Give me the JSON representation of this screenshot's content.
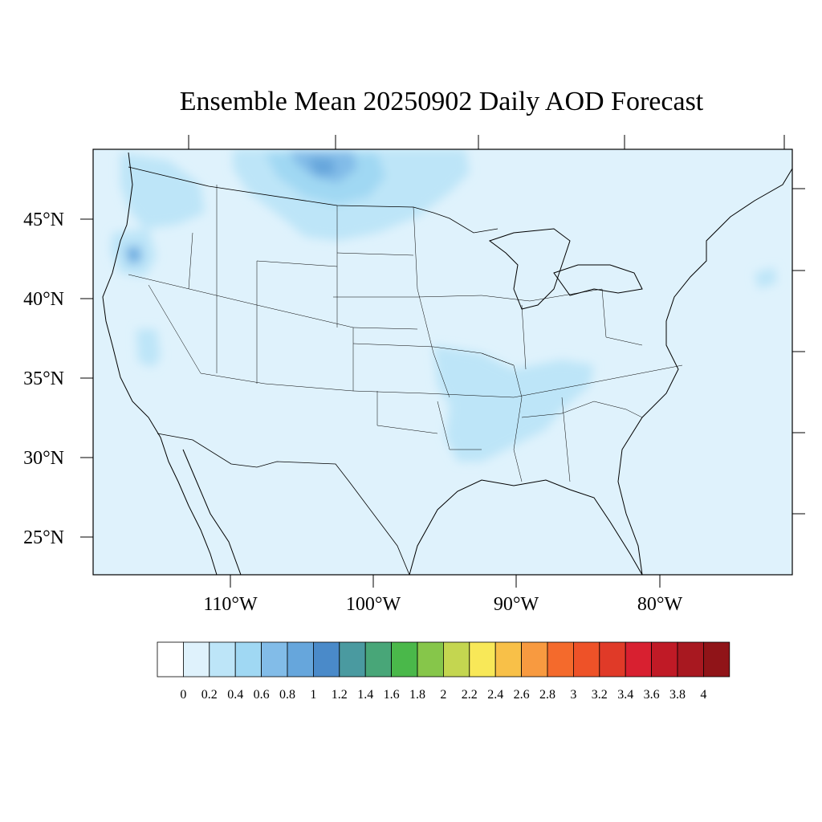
{
  "title": "Ensemble Mean 20250902 Daily AOD Forecast",
  "map": {
    "lat_ticks": [
      {
        "value": 45,
        "label": "45°N"
      },
      {
        "value": 40,
        "label": "40°N"
      },
      {
        "value": 35,
        "label": "35°N"
      },
      {
        "value": 30,
        "label": "30°N"
      },
      {
        "value": 25,
        "label": "25°N"
      }
    ],
    "lon_ticks": [
      {
        "value": -110,
        "label": "110°W"
      },
      {
        "value": -100,
        "label": "100°W"
      },
      {
        "value": -90,
        "label": "90°W"
      },
      {
        "value": -80,
        "label": "80°W"
      }
    ],
    "background_aod_color": "#dff2fc",
    "coastline_color": "#000000"
  },
  "colorbar": {
    "colors": [
      "#ffffff",
      "#dff2fc",
      "#bde5f8",
      "#a0d8f3",
      "#82bce8",
      "#66a6dc",
      "#4a8ac9",
      "#4a9aa0",
      "#48a678",
      "#4ab84a",
      "#86c64a",
      "#c4d650",
      "#f8e858",
      "#f8c048",
      "#f89a40",
      "#f46a2c",
      "#ee5228",
      "#e03a28",
      "#d82030",
      "#c01a26",
      "#a81820",
      "#901418"
    ],
    "labels": [
      "0",
      "0.2",
      "0.4",
      "0.6",
      "0.8",
      "1",
      "1.2",
      "1.4",
      "1.6",
      "1.8",
      "2",
      "2.2",
      "2.4",
      "2.6",
      "2.8",
      "3",
      "3.2",
      "3.4",
      "3.6",
      "3.8",
      "4"
    ]
  }
}
